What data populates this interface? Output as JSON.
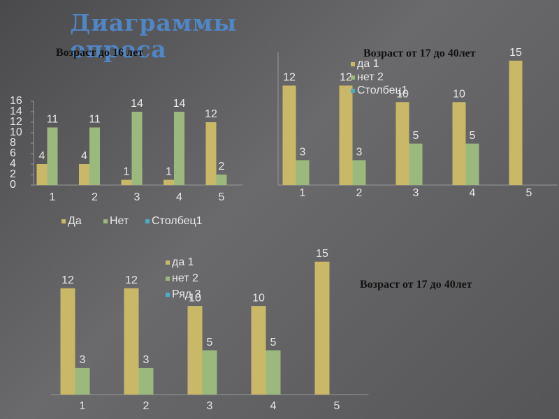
{
  "slide": {
    "title": "Диаграммы опроса"
  },
  "chart_data": [
    {
      "type": "bar",
      "title": "Возраст до 16 лет",
      "categories": [
        "1",
        "2",
        "3",
        "4",
        "5"
      ],
      "series": [
        {
          "name": "Да",
          "color": "#c9b867",
          "values": [
            4,
            4,
            1,
            1,
            12
          ]
        },
        {
          "name": "Нет",
          "color": "#9bb97c",
          "values": [
            11,
            11,
            14,
            14,
            2
          ]
        },
        {
          "name": "Столбец1",
          "color": "#4bacc6",
          "values": [
            null,
            null,
            null,
            null,
            null
          ]
        }
      ],
      "ylim": [
        0,
        16
      ],
      "yticks": [
        0,
        2,
        4,
        6,
        8,
        10,
        12,
        14,
        16
      ],
      "legend": "bottom"
    },
    {
      "type": "bar",
      "title": "Возраст  от 17 до 40лет",
      "categories": [
        "1",
        "2",
        "3",
        "4",
        "5"
      ],
      "series": [
        {
          "name": "да  1",
          "color": "#c9b867",
          "values": [
            12,
            12,
            10,
            10,
            15
          ]
        },
        {
          "name": "нет  2",
          "color": "#9bb97c",
          "values": [
            3,
            3,
            5,
            5,
            null
          ]
        },
        {
          "name": "Столбец1",
          "color": "#4bacc6",
          "values": [
            null,
            null,
            null,
            null,
            null
          ]
        }
      ],
      "ylim": [
        0,
        16
      ],
      "legend": "top"
    },
    {
      "type": "bar",
      "title": "Возраст  от 17 до  40лет",
      "categories": [
        "1",
        "2",
        "3",
        "4",
        "5"
      ],
      "series": [
        {
          "name": "да  1",
          "color": "#c9b867",
          "values": [
            12,
            12,
            10,
            10,
            15
          ]
        },
        {
          "name": "нет  2",
          "color": "#9bb97c",
          "values": [
            3,
            3,
            5,
            5,
            null
          ]
        },
        {
          "name": "Ряд 3",
          "color": "#4bacc6",
          "values": [
            null,
            null,
            null,
            null,
            null
          ]
        }
      ],
      "ylim": [
        0,
        16
      ],
      "legend": "top"
    }
  ]
}
